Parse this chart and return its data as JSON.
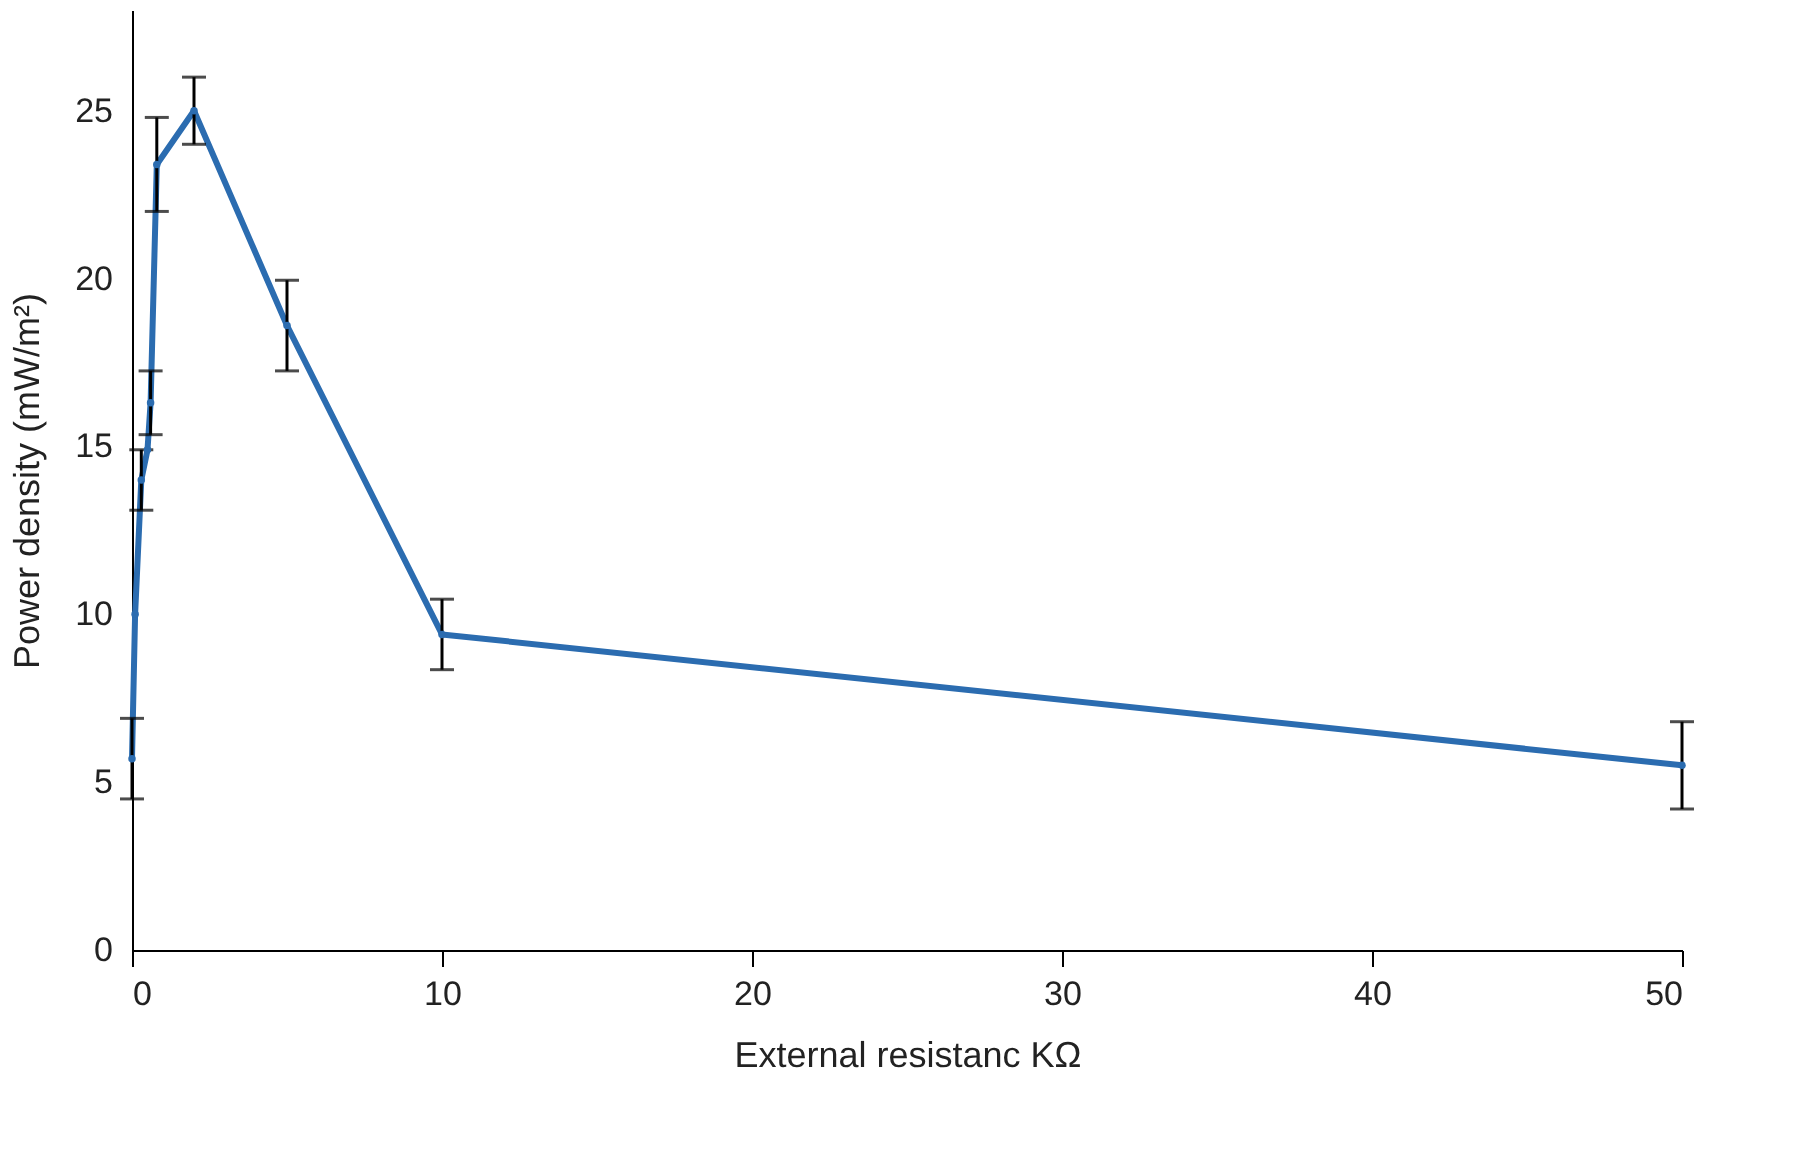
{
  "chart_data": {
    "type": "line",
    "xlabel": "External resistanc KΩ",
    "ylabel": "Power density (mW/m²)",
    "x": [
      0,
      0.1,
      0.3,
      0.5,
      0.6,
      0.8,
      2,
      5,
      10,
      50
    ],
    "series": [
      {
        "color": "#2b6cb0",
        "values": [
          5.7,
          10.0,
          14.0,
          14.9,
          16.3,
          23.4,
          25.0,
          18.6,
          9.4,
          5.5
        ],
        "errors": [
          1.2,
          null,
          0.9,
          null,
          0.95,
          1.4,
          1.0,
          1.35,
          1.05,
          1.3
        ]
      }
    ],
    "xlim": [
      0,
      50
    ],
    "xticks": [
      0,
      10,
      20,
      30,
      40,
      50
    ],
    "ylim": [
      0,
      28
    ],
    "yticks": [
      0,
      5,
      10,
      15,
      20,
      25
    ],
    "grid": false,
    "marker": "circle",
    "line_style": "solid"
  }
}
